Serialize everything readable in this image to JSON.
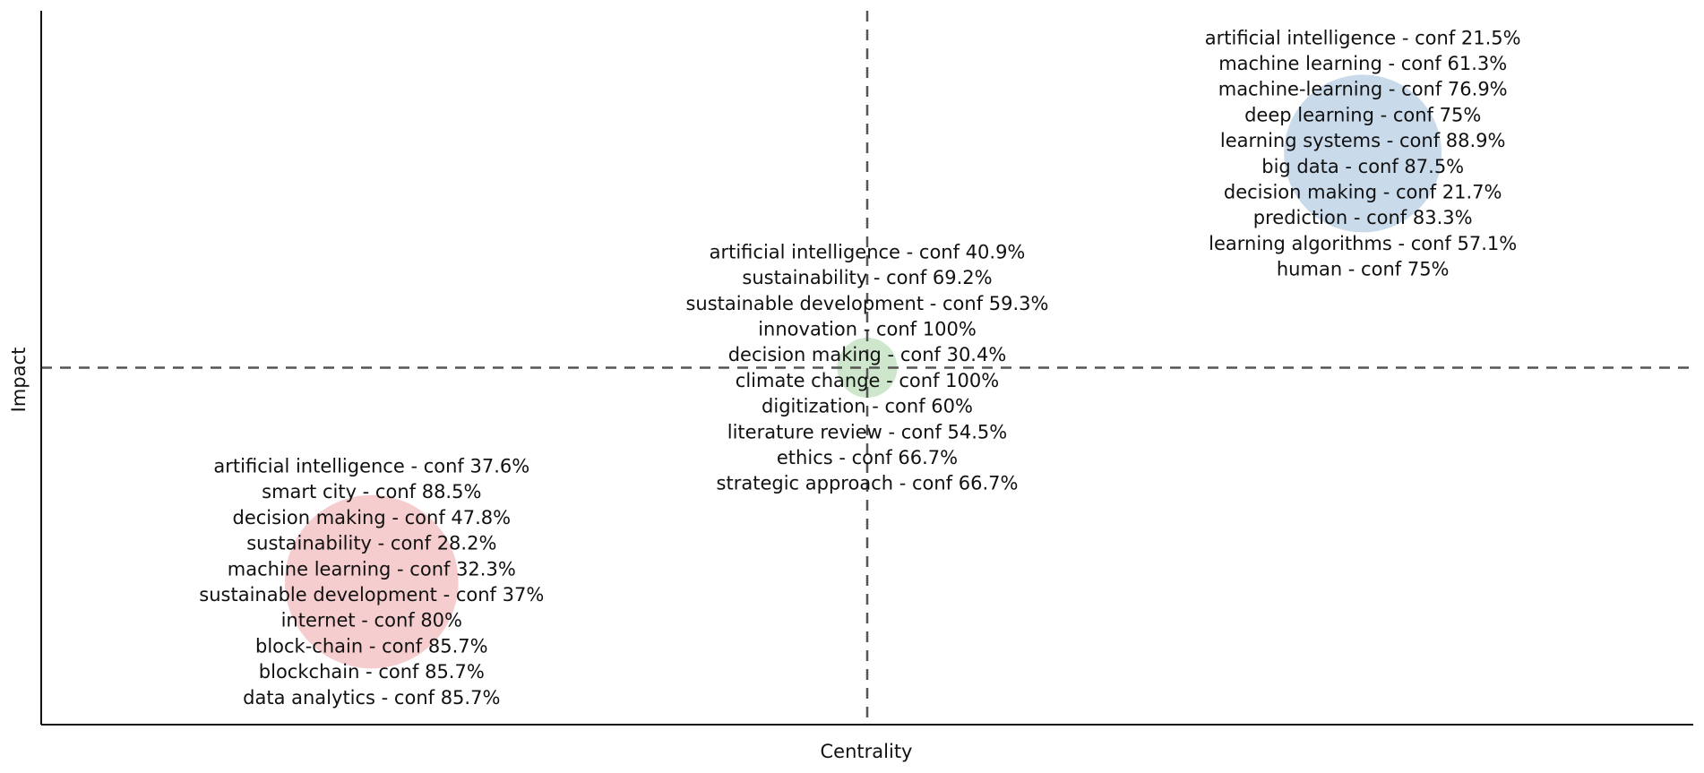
{
  "chart_data": {
    "type": "scatter",
    "xlabel": "Centrality",
    "ylabel": "Impact",
    "xlim": [
      0,
      1
    ],
    "ylim": [
      0,
      1
    ],
    "grid": false,
    "legend": "none",
    "reference_lines": {
      "x": 0.5,
      "y": 0.5,
      "style": "dashed"
    },
    "clusters": [
      {
        "color": "#c0d4e8",
        "x": 0.8,
        "y": 0.8,
        "size": 1.0,
        "keywords": [
          "artificial intelligence - conf 21.5%",
          "machine learning - conf 61.3%",
          "machine-learning - conf 76.9%",
          "deep learning - conf 75%",
          "learning systems - conf 88.9%",
          "big data - conf 87.5%",
          "decision making - conf 21.7%",
          "prediction - conf 83.3%",
          "learning algorithms - conf 57.1%",
          "human - conf 75%"
        ]
      },
      {
        "color": "#c6e3c3",
        "x": 0.5,
        "y": 0.5,
        "size": 0.38,
        "keywords": [
          "artificial intelligence - conf 40.9%",
          "sustainability - conf 69.2%",
          "sustainable development - conf 59.3%",
          "innovation - conf 100%",
          "decision making - conf 30.4%",
          "climate change - conf 100%",
          "digitization - conf 60%",
          "literature review - conf 54.5%",
          "ethics - conf 66.7%",
          "strategic approach - conf 66.7%"
        ]
      },
      {
        "color": "#f3c4c6",
        "x": 0.2,
        "y": 0.2,
        "size": 1.1,
        "keywords": [
          "artificial intelligence - conf 37.6%",
          "smart city - conf 88.5%",
          "decision making - conf 47.8%",
          "sustainability - conf 28.2%",
          "machine learning - conf 32.3%",
          "sustainable development - conf 37%",
          "internet - conf 80%",
          "block-chain - conf 85.7%",
          "blockchain - conf 85.7%",
          "data analytics - conf 85.7%"
        ]
      }
    ]
  }
}
